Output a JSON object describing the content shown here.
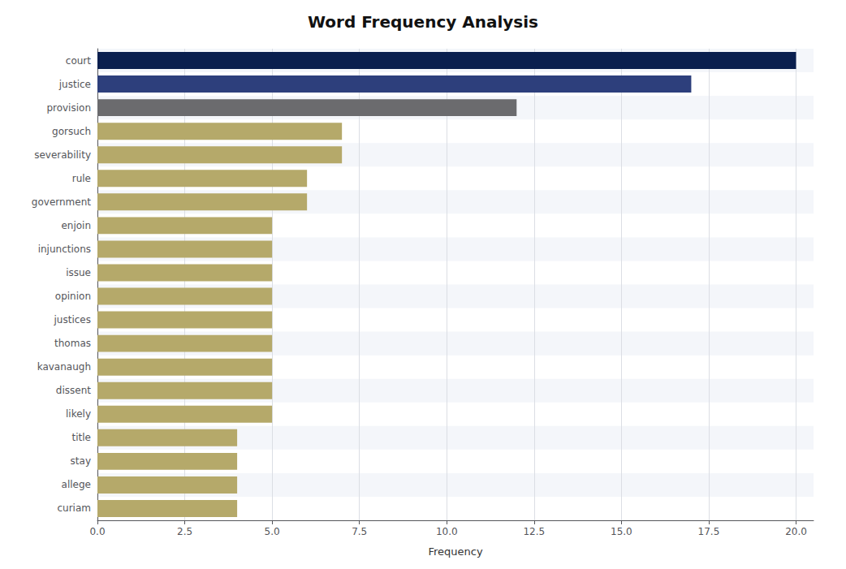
{
  "chart_data": {
    "type": "bar",
    "orientation": "horizontal",
    "title": "Word Frequency Analysis",
    "categories": [
      "court",
      "justice",
      "provision",
      "gorsuch",
      "severability",
      "rule",
      "government",
      "enjoin",
      "injunctions",
      "issue",
      "opinion",
      "justices",
      "thomas",
      "kavanaugh",
      "dissent",
      "likely",
      "title",
      "stay",
      "allege",
      "curiam"
    ],
    "values": [
      20,
      17,
      12,
      7,
      7,
      6,
      6,
      5,
      5,
      5,
      5,
      5,
      5,
      5,
      5,
      5,
      4,
      4,
      4,
      4
    ],
    "colors": [
      "#0a1f4e",
      "#2d3f7c",
      "#6b6b6e",
      "#b5a96a",
      "#b5a96a",
      "#b5a96a",
      "#b5a96a",
      "#b5a96a",
      "#b5a96a",
      "#b5a96a",
      "#b5a96a",
      "#b5a96a",
      "#b5a96a",
      "#b5a96a",
      "#b5a96a",
      "#b5a96a",
      "#b5a96a",
      "#b5a96a",
      "#b5a96a",
      "#b5a96a"
    ],
    "xlabel": "Frequency",
    "xlim": [
      0,
      20.5
    ],
    "xticks": [
      {
        "value": 0,
        "label": "0.0"
      },
      2.5,
      {
        "value": 5,
        "label": "5.0"
      },
      7.5,
      {
        "value": 10,
        "label": "10.0"
      },
      12.5,
      {
        "value": 15,
        "label": "15.0"
      },
      17.5,
      {
        "value": 20,
        "label": "20.0"
      }
    ],
    "grid": true
  }
}
